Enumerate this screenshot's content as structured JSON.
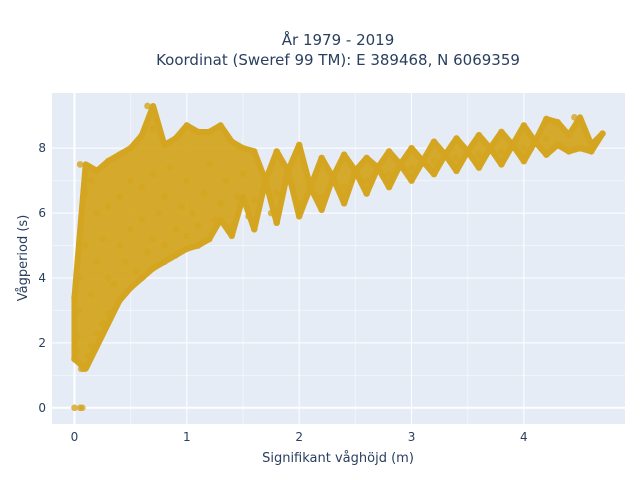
{
  "chart_data": {
    "type": "scatter",
    "title_line1": "År 1979 - 2019",
    "title_line2": "Koordinat (Sweref 99 TM): E 389468, N 6069359",
    "xlabel": "Signifikant våghöjd (m)",
    "ylabel": "Vågperiod (s)",
    "xlim": [
      -0.2,
      4.9
    ],
    "ylim": [
      -0.5,
      9.7
    ],
    "x_ticks": [
      0,
      1,
      2,
      3,
      4
    ],
    "x_tick_labels": [
      "0",
      "1",
      "2",
      "3",
      "4"
    ],
    "y_ticks": [
      0,
      2,
      4,
      6,
      8
    ],
    "y_tick_labels": [
      "0",
      "2",
      "4",
      "6",
      "8"
    ],
    "grid": true,
    "legend": "none",
    "colors": {
      "marker": "#d4a520",
      "plot_background": "#e5ecf6"
    },
    "series": [
      {
        "points": [
          [
            0.0,
            0.0
          ],
          [
            0.05,
            0.0
          ],
          [
            0.07,
            0.0
          ],
          [
            0.0,
            1.5
          ],
          [
            0.0,
            3.4
          ],
          [
            0.02,
            1.7
          ],
          [
            0.03,
            2.2
          ],
          [
            0.04,
            3.0
          ],
          [
            0.05,
            4.0
          ],
          [
            0.06,
            1.2
          ],
          [
            0.08,
            1.2
          ],
          [
            0.1,
            1.3
          ],
          [
            0.12,
            1.6
          ],
          [
            0.15,
            1.9
          ],
          [
            0.2,
            2.3
          ],
          [
            0.25,
            2.6
          ],
          [
            0.3,
            2.9
          ],
          [
            0.4,
            3.3
          ],
          [
            0.5,
            3.7
          ],
          [
            0.6,
            4.0
          ],
          [
            0.7,
            4.3
          ],
          [
            0.8,
            4.5
          ],
          [
            0.9,
            4.7
          ],
          [
            1.0,
            4.9
          ],
          [
            1.1,
            5.0
          ],
          [
            1.2,
            5.2
          ],
          [
            1.4,
            5.3
          ],
          [
            1.6,
            5.5
          ],
          [
            1.8,
            5.7
          ],
          [
            2.0,
            5.9
          ],
          [
            2.2,
            6.1
          ],
          [
            2.4,
            6.3
          ],
          [
            2.6,
            6.6
          ],
          [
            2.8,
            6.8
          ],
          [
            3.0,
            7.0
          ],
          [
            3.2,
            7.2
          ],
          [
            3.4,
            7.3
          ],
          [
            3.6,
            7.4
          ],
          [
            3.8,
            7.5
          ],
          [
            4.0,
            7.6
          ],
          [
            4.2,
            7.8
          ],
          [
            4.4,
            7.9
          ],
          [
            4.5,
            8.0
          ],
          [
            4.6,
            7.9
          ],
          [
            0.05,
            7.5
          ],
          [
            0.1,
            6.6
          ],
          [
            0.15,
            7.0
          ],
          [
            0.2,
            7.3
          ],
          [
            0.3,
            7.6
          ],
          [
            0.4,
            7.8
          ],
          [
            0.5,
            8.0
          ],
          [
            0.6,
            8.4
          ],
          [
            0.65,
            9.3
          ],
          [
            0.7,
            8.6
          ],
          [
            0.8,
            8.1
          ],
          [
            0.9,
            8.3
          ],
          [
            1.0,
            8.7
          ],
          [
            1.1,
            8.5
          ],
          [
            1.2,
            8.5
          ],
          [
            1.3,
            8.7
          ],
          [
            1.4,
            8.2
          ],
          [
            1.5,
            8.0
          ],
          [
            1.6,
            7.9
          ],
          [
            1.8,
            7.9
          ],
          [
            2.0,
            8.1
          ],
          [
            2.2,
            7.7
          ],
          [
            2.4,
            7.8
          ],
          [
            2.6,
            7.7
          ],
          [
            2.8,
            7.9
          ],
          [
            3.0,
            8.0
          ],
          [
            3.2,
            8.2
          ],
          [
            3.4,
            8.3
          ],
          [
            3.6,
            8.4
          ],
          [
            3.8,
            8.5
          ],
          [
            4.0,
            8.7
          ],
          [
            4.2,
            8.9
          ],
          [
            4.3,
            8.8
          ],
          [
            4.45,
            8.95
          ],
          [
            4.6,
            8.1
          ],
          [
            4.7,
            8.45
          ],
          [
            0.1,
            5.0
          ],
          [
            0.15,
            3.5
          ],
          [
            0.2,
            4.5
          ],
          [
            0.2,
            6.0
          ],
          [
            0.25,
            5.2
          ],
          [
            0.3,
            4.0
          ],
          [
            0.3,
            6.2
          ],
          [
            0.35,
            3.8
          ],
          [
            0.4,
            5.0
          ],
          [
            0.4,
            6.5
          ],
          [
            0.45,
            4.5
          ],
          [
            0.5,
            5.5
          ],
          [
            0.5,
            7.0
          ],
          [
            0.55,
            4.2
          ],
          [
            0.6,
            5.8
          ],
          [
            0.6,
            6.8
          ],
          [
            0.65,
            4.8
          ],
          [
            0.7,
            5.2
          ],
          [
            0.7,
            7.2
          ],
          [
            0.75,
            6.0
          ],
          [
            0.8,
            5.0
          ],
          [
            0.8,
            6.5
          ],
          [
            0.85,
            7.4
          ],
          [
            0.9,
            5.5
          ],
          [
            0.95,
            6.2
          ],
          [
            1.0,
            5.3
          ],
          [
            1.0,
            7.0
          ],
          [
            1.05,
            6.0
          ],
          [
            1.1,
            5.6
          ],
          [
            1.15,
            6.6
          ],
          [
            1.2,
            7.5
          ],
          [
            1.25,
            5.8
          ],
          [
            1.3,
            6.3
          ],
          [
            1.35,
            7.0
          ],
          [
            1.4,
            5.6
          ],
          [
            1.45,
            6.5
          ],
          [
            1.5,
            7.2
          ],
          [
            1.55,
            5.9
          ],
          [
            1.6,
            6.4
          ],
          [
            1.7,
            7.0
          ],
          [
            1.75,
            6.0
          ],
          [
            1.8,
            6.6
          ],
          [
            1.9,
            7.3
          ],
          [
            2.0,
            6.3
          ],
          [
            2.1,
            6.8
          ],
          [
            2.2,
            6.5
          ],
          [
            2.3,
            7.1
          ],
          [
            2.4,
            6.8
          ],
          [
            2.5,
            7.3
          ],
          [
            2.6,
            7.0
          ],
          [
            2.7,
            7.4
          ],
          [
            2.8,
            7.2
          ],
          [
            2.9,
            7.5
          ],
          [
            3.0,
            7.4
          ],
          [
            3.1,
            7.6
          ],
          [
            3.2,
            7.6
          ],
          [
            3.3,
            7.8
          ],
          [
            3.4,
            7.7
          ],
          [
            3.5,
            7.9
          ],
          [
            3.6,
            7.8
          ],
          [
            3.7,
            8.0
          ],
          [
            3.8,
            7.9
          ],
          [
            3.9,
            8.1
          ],
          [
            4.0,
            8.0
          ],
          [
            4.1,
            8.2
          ],
          [
            4.2,
            8.3
          ],
          [
            4.3,
            8.1
          ],
          [
            4.4,
            8.4
          ]
        ]
      }
    ]
  }
}
